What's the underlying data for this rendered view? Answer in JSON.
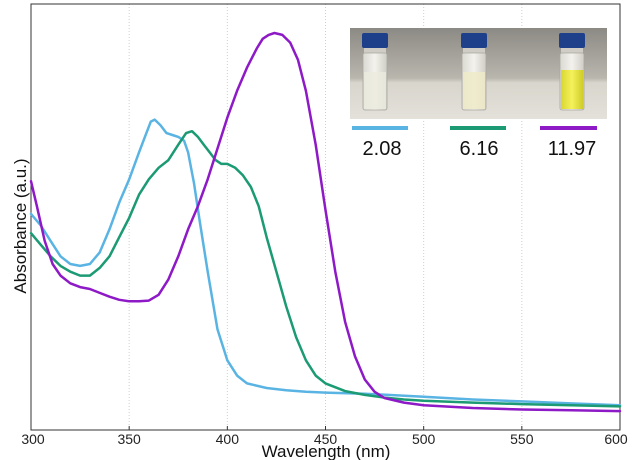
{
  "chart_data": {
    "type": "line",
    "title": "",
    "xlabel": "Wavelength (nm)",
    "ylabel": "Absorbance (a.u.)",
    "xlim": [
      300,
      600
    ],
    "ylim": [
      0,
      1
    ],
    "x_ticks": [
      300,
      350,
      400,
      450,
      500,
      550,
      600
    ],
    "y_tick_labels_shown": false,
    "grid": "vertical dotted lines at x ticks",
    "legend_placement": "top-right (below inset photo)",
    "inset": "photo of three vials, colorless to yellow",
    "series": [
      {
        "name": "2.08",
        "color": "#5ab4e3",
        "points": [
          [
            300,
            0.53
          ],
          [
            305,
            0.5
          ],
          [
            310,
            0.46
          ],
          [
            315,
            0.42
          ],
          [
            320,
            0.4
          ],
          [
            325,
            0.395
          ],
          [
            330,
            0.4
          ],
          [
            335,
            0.43
          ],
          [
            340,
            0.49
          ],
          [
            345,
            0.56
          ],
          [
            350,
            0.62
          ],
          [
            355,
            0.69
          ],
          [
            358,
            0.73
          ],
          [
            361,
            0.77
          ],
          [
            363,
            0.775
          ],
          [
            366,
            0.76
          ],
          [
            369,
            0.74
          ],
          [
            372,
            0.735
          ],
          [
            375,
            0.73
          ],
          [
            378,
            0.72
          ],
          [
            380,
            0.69
          ],
          [
            383,
            0.61
          ],
          [
            386,
            0.51
          ],
          [
            390,
            0.38
          ],
          [
            395,
            0.23
          ],
          [
            400,
            0.15
          ],
          [
            405,
            0.11
          ],
          [
            410,
            0.09
          ],
          [
            420,
            0.078
          ],
          [
            430,
            0.072
          ],
          [
            440,
            0.068
          ],
          [
            450,
            0.066
          ],
          [
            470,
            0.063
          ],
          [
            500,
            0.055
          ],
          [
            525,
            0.048
          ],
          [
            550,
            0.043
          ],
          [
            575,
            0.038
          ],
          [
            600,
            0.033
          ]
        ]
      },
      {
        "name": "6.16",
        "color": "#1b9a73",
        "points": [
          [
            300,
            0.48
          ],
          [
            305,
            0.45
          ],
          [
            310,
            0.42
          ],
          [
            315,
            0.395
          ],
          [
            320,
            0.38
          ],
          [
            325,
            0.37
          ],
          [
            330,
            0.37
          ],
          [
            335,
            0.39
          ],
          [
            340,
            0.42
          ],
          [
            345,
            0.47
          ],
          [
            350,
            0.52
          ],
          [
            355,
            0.58
          ],
          [
            360,
            0.62
          ],
          [
            365,
            0.65
          ],
          [
            370,
            0.67
          ],
          [
            375,
            0.71
          ],
          [
            379,
            0.74
          ],
          [
            382,
            0.745
          ],
          [
            385,
            0.73
          ],
          [
            388,
            0.71
          ],
          [
            391,
            0.69
          ],
          [
            394,
            0.67
          ],
          [
            397,
            0.66
          ],
          [
            400,
            0.66
          ],
          [
            404,
            0.65
          ],
          [
            408,
            0.63
          ],
          [
            412,
            0.6
          ],
          [
            416,
            0.55
          ],
          [
            420,
            0.47
          ],
          [
            425,
            0.38
          ],
          [
            430,
            0.29
          ],
          [
            435,
            0.21
          ],
          [
            440,
            0.15
          ],
          [
            445,
            0.11
          ],
          [
            450,
            0.09
          ],
          [
            460,
            0.07
          ],
          [
            470,
            0.06
          ],
          [
            480,
            0.053
          ],
          [
            490,
            0.048
          ],
          [
            500,
            0.045
          ],
          [
            525,
            0.04
          ],
          [
            550,
            0.036
          ],
          [
            575,
            0.033
          ],
          [
            600,
            0.03
          ]
        ]
      },
      {
        "name": "11.97",
        "color": "#8e19c6",
        "points": [
          [
            300,
            0.615
          ],
          [
            303,
            0.55
          ],
          [
            307,
            0.46
          ],
          [
            311,
            0.4
          ],
          [
            315,
            0.37
          ],
          [
            320,
            0.35
          ],
          [
            325,
            0.34
          ],
          [
            330,
            0.335
          ],
          [
            335,
            0.325
          ],
          [
            340,
            0.315
          ],
          [
            345,
            0.307
          ],
          [
            350,
            0.303
          ],
          [
            355,
            0.303
          ],
          [
            360,
            0.305
          ],
          [
            365,
            0.32
          ],
          [
            370,
            0.36
          ],
          [
            375,
            0.42
          ],
          [
            380,
            0.49
          ],
          [
            385,
            0.55
          ],
          [
            390,
            0.62
          ],
          [
            395,
            0.7
          ],
          [
            400,
            0.78
          ],
          [
            405,
            0.85
          ],
          [
            410,
            0.91
          ],
          [
            415,
            0.96
          ],
          [
            418,
            0.985
          ],
          [
            421,
            0.995
          ],
          [
            424,
            1.0
          ],
          [
            428,
            0.995
          ],
          [
            432,
            0.975
          ],
          [
            436,
            0.93
          ],
          [
            440,
            0.85
          ],
          [
            445,
            0.71
          ],
          [
            450,
            0.54
          ],
          [
            455,
            0.38
          ],
          [
            460,
            0.25
          ],
          [
            465,
            0.16
          ],
          [
            470,
            0.1
          ],
          [
            475,
            0.068
          ],
          [
            480,
            0.052
          ],
          [
            490,
            0.04
          ],
          [
            500,
            0.033
          ],
          [
            525,
            0.026
          ],
          [
            550,
            0.022
          ],
          [
            575,
            0.02
          ],
          [
            600,
            0.018
          ]
        ]
      }
    ]
  }
}
